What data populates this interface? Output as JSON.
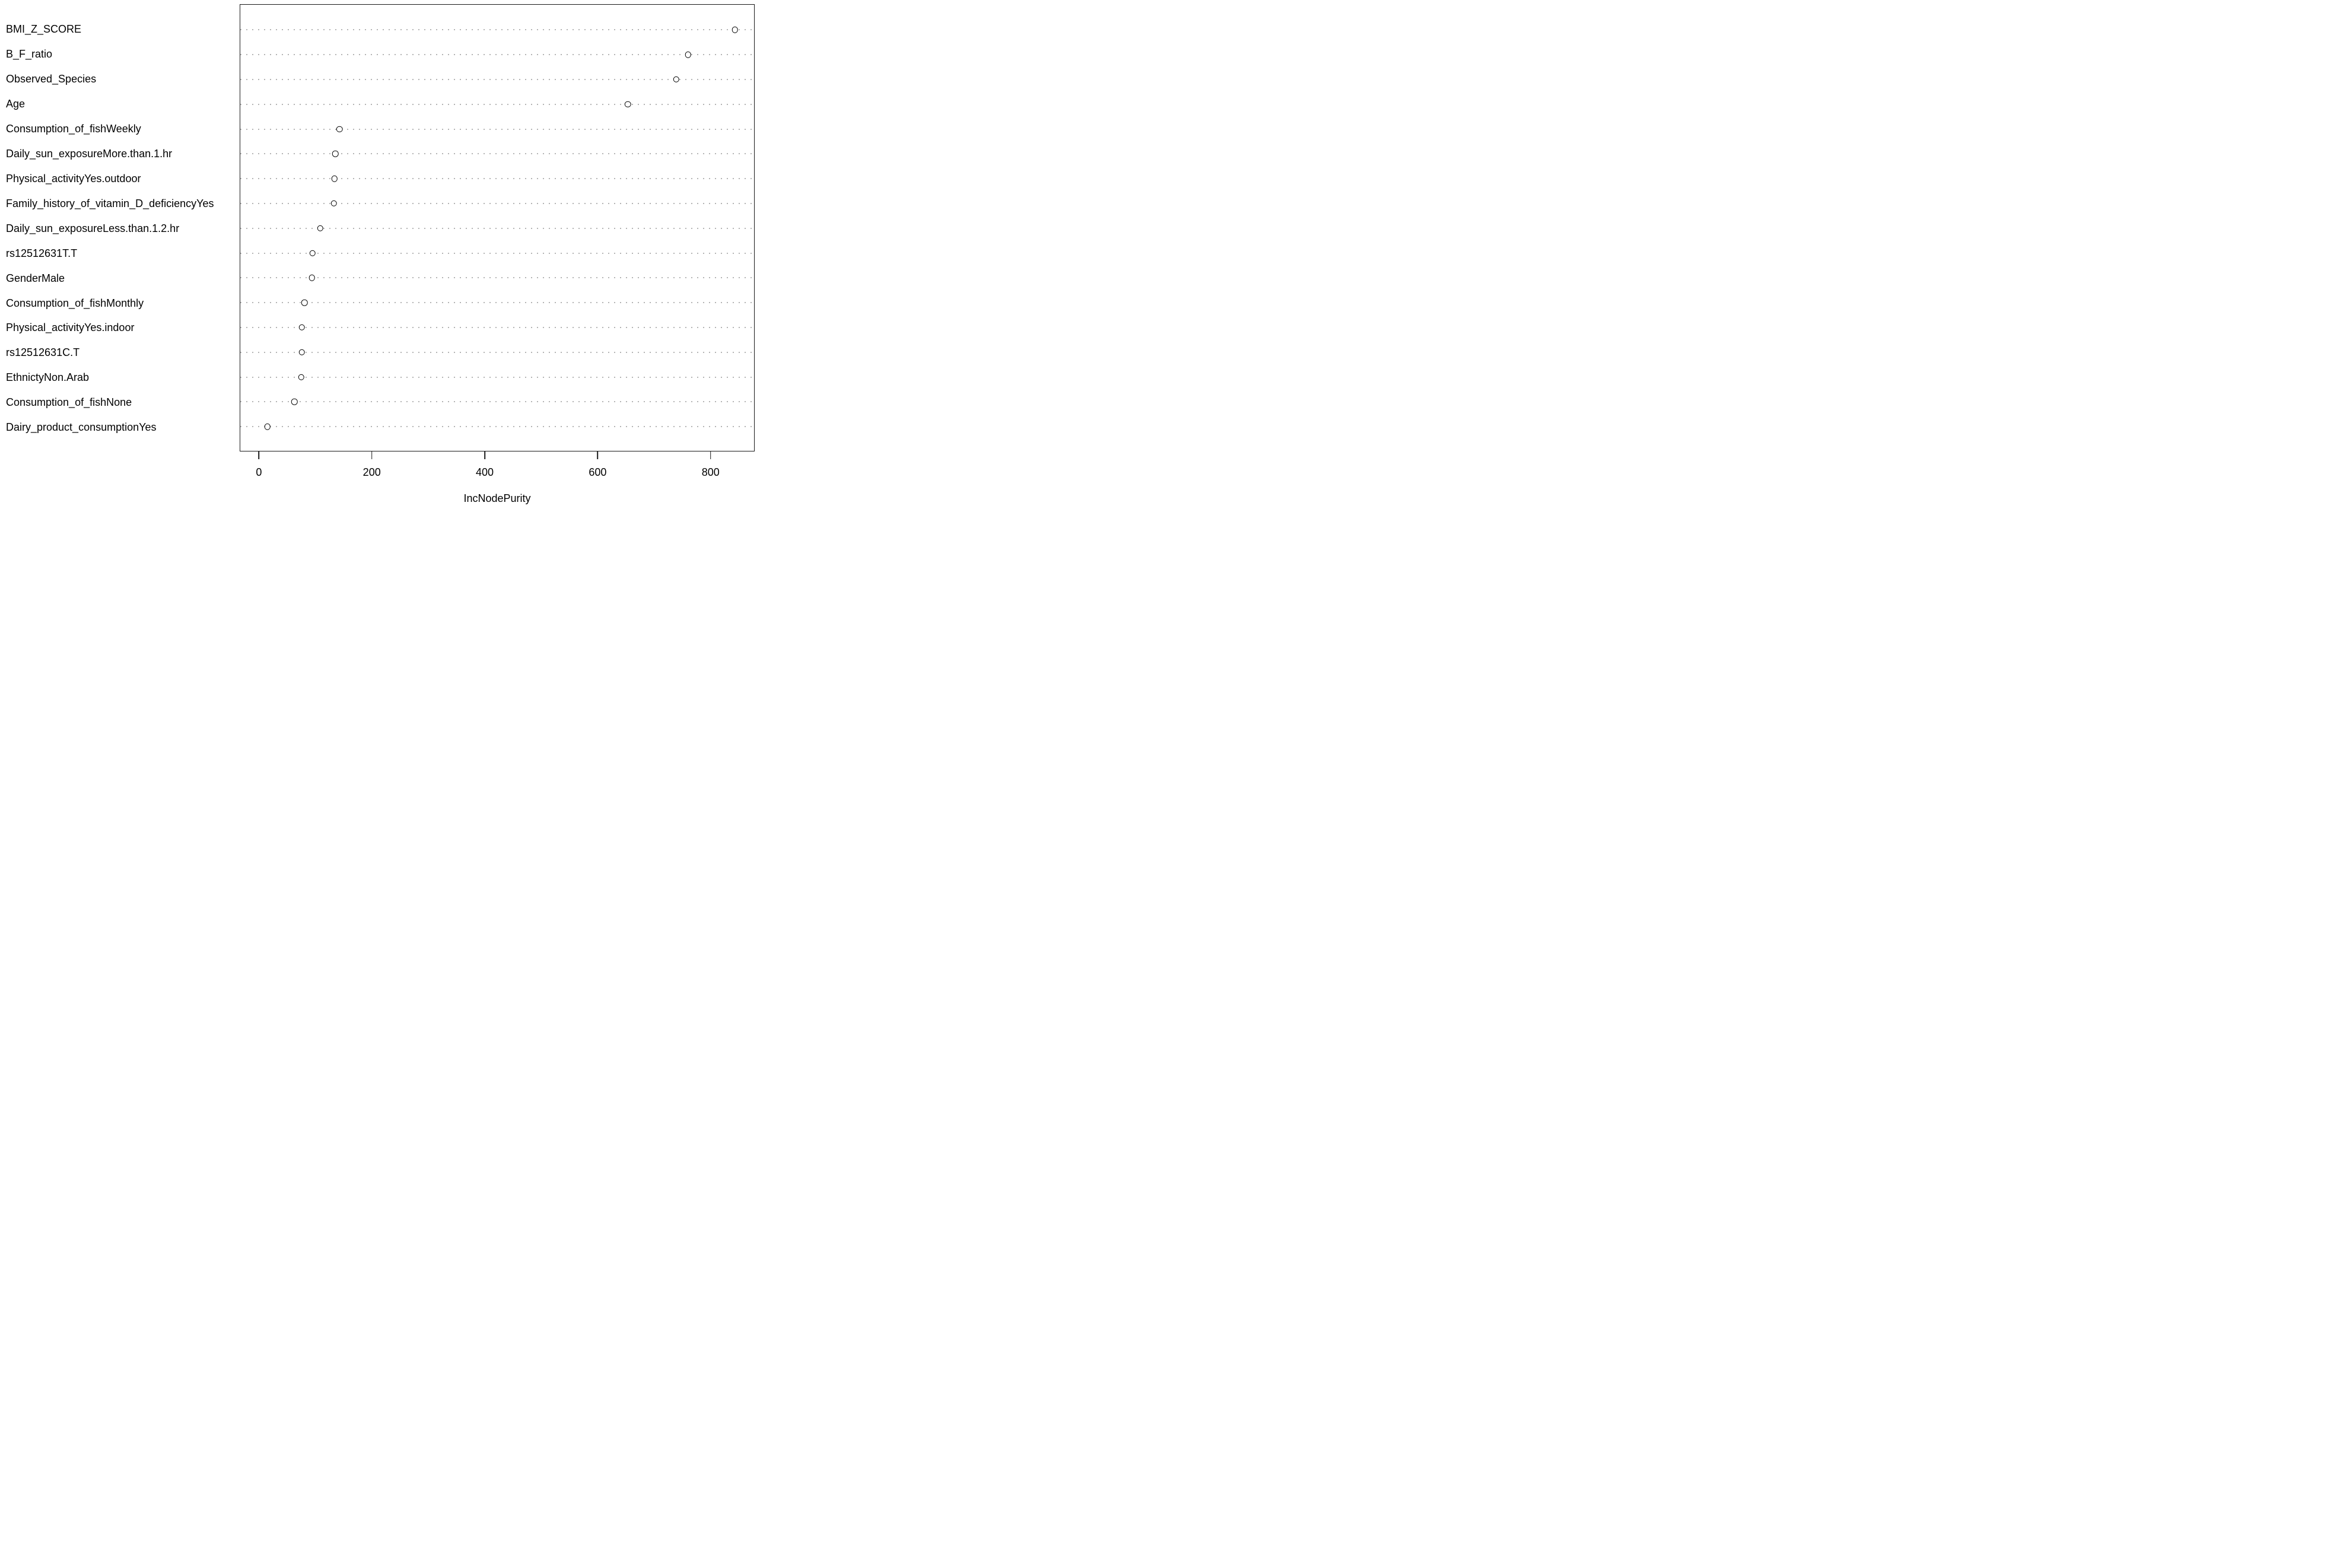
{
  "chart_data": {
    "type": "scatter",
    "subtype": "dotchart-variable-importance",
    "title": "",
    "xlabel": "IncNodePurity",
    "ylabel": "",
    "categories": [
      "BMI_Z_SCORE",
      "B_F_ratio",
      "Observed_Species",
      "Age",
      "Consumption_of_fishWeekly",
      "Daily_sun_exposureMore.than.1.hr",
      "Physical_activityYes.outdoor",
      "Family_history_of_vitamin_D_deficiencyYes",
      "Daily_sun_exposureLess.than.1.2.hr",
      "rs12512631T.T",
      "GenderMale",
      "Consumption_of_fishMonthly",
      "Physical_activityYes.indoor",
      "rs12512631C.T",
      "EthnictyNon.Arab",
      "Consumption_of_fishNone",
      "Dairy_product_consumptionYes"
    ],
    "values": [
      844,
      761,
      740,
      654,
      142,
      135,
      133,
      132,
      108,
      94,
      93,
      80,
      75,
      75,
      74,
      62,
      14
    ],
    "x_ticks": [
      0,
      200,
      400,
      600,
      800
    ],
    "layout": {
      "xlim": [
        -34,
        878
      ],
      "first_row_frac": 0.0562,
      "row_step_frac": 0.0556,
      "grid": "dotted-horizontal",
      "legend": "none",
      "marker": "open-circle"
    },
    "colors": {
      "point_stroke": "#000000",
      "gridline": "#b4b4b4",
      "box_border": "#1a1a1a",
      "text": "#000000",
      "background": "#ffffff"
    }
  }
}
